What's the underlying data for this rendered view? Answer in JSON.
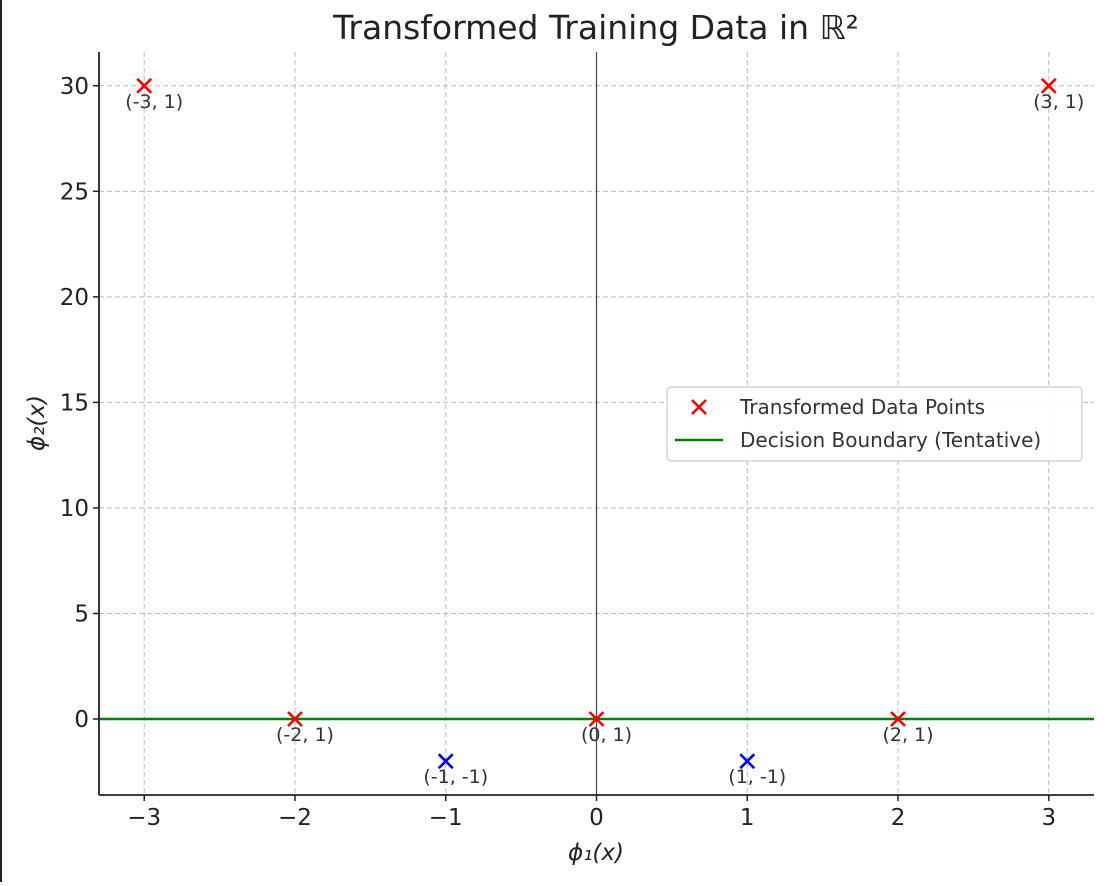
{
  "chart_data": {
    "type": "scatter",
    "title": "Transformed Training Data in ℝ²",
    "xlabel": "ϕ₁(x)",
    "ylabel": "ϕ₂(x)",
    "xlim": [
      -3.3,
      3.3
    ],
    "ylim": [
      -3.6,
      31.6
    ],
    "xticks": [
      -3,
      -2,
      -1,
      0,
      1,
      2,
      3
    ],
    "xtick_labels": [
      "−3",
      "−2",
      "−1",
      "0",
      "1",
      "2",
      "3"
    ],
    "yticks": [
      0,
      5,
      10,
      15,
      20,
      25,
      30
    ],
    "ytick_labels": [
      "0",
      "5",
      "10",
      "15",
      "20",
      "25",
      "30"
    ],
    "grid": true,
    "legend_position": "center-right",
    "points": [
      {
        "x": -3,
        "y": 30,
        "label": "(-3, 1)",
        "color": "#ff0000"
      },
      {
        "x": 3,
        "y": 30,
        "label": "(3, 1)",
        "color": "#ff0000"
      },
      {
        "x": -2,
        "y": 0,
        "label": "(-2, 1)",
        "color": "#ff0000"
      },
      {
        "x": 0,
        "y": 0,
        "label": "(0, 1)",
        "color": "#ff0000"
      },
      {
        "x": 2,
        "y": 0,
        "label": "(2, 1)",
        "color": "#ff0000"
      },
      {
        "x": -1,
        "y": -2,
        "label": "(-1, -1)",
        "color": "#0000ff"
      },
      {
        "x": 1,
        "y": -2,
        "label": "(1, -1)",
        "color": "#0000ff"
      }
    ],
    "decision_boundary": {
      "y": 0,
      "color": "#008000"
    },
    "vertical_axis_line": {
      "x": 0,
      "color": "#444444"
    },
    "legend": [
      {
        "label": "Transformed Data Points",
        "marker": "x",
        "color": "#ff0000"
      },
      {
        "label": "Decision Boundary (Tentative)",
        "marker": "line",
        "color": "#008000"
      }
    ]
  }
}
